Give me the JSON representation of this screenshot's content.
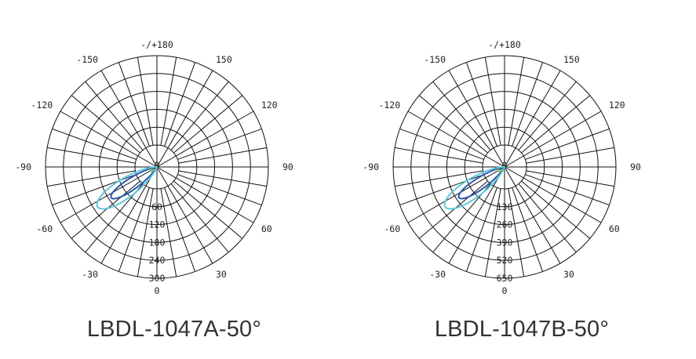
{
  "panels": [
    {
      "title": "LBDL-1047A-50°",
      "angle_labels": [
        {
          "angle": 180,
          "text": "-/+180"
        },
        {
          "angle": -150,
          "text": "-150"
        },
        {
          "angle": 150,
          "text": "150"
        },
        {
          "angle": -120,
          "text": "-120"
        },
        {
          "angle": 120,
          "text": "120"
        },
        {
          "angle": -90,
          "text": "-90"
        },
        {
          "angle": 90,
          "text": "90"
        },
        {
          "angle": -60,
          "text": "-60"
        },
        {
          "angle": 60,
          "text": "60"
        },
        {
          "angle": -30,
          "text": "-30"
        },
        {
          "angle": 30,
          "text": "30"
        },
        {
          "angle": 0,
          "text": "0"
        }
      ],
      "center_label": "0",
      "radial_labels": [
        "60",
        "120",
        "180",
        "240",
        "300"
      ],
      "radial_max": 300,
      "curves": [
        {
          "color": "#5ec8d8",
          "peak_angle": -56,
          "peak_value": 240,
          "half_width_deg": 13
        },
        {
          "color": "#2a58b0",
          "peak_angle": -56,
          "peak_value": 185,
          "half_width_deg": 10
        },
        {
          "color": "#8fd04a",
          "peak_angle": -56,
          "peak_value": 25,
          "half_width_deg": 20
        }
      ]
    },
    {
      "title": "LBDL-1047B-50°",
      "angle_labels": [
        {
          "angle": 180,
          "text": "-/+180"
        },
        {
          "angle": -150,
          "text": "-150"
        },
        {
          "angle": 150,
          "text": "150"
        },
        {
          "angle": -120,
          "text": "-120"
        },
        {
          "angle": 120,
          "text": "120"
        },
        {
          "angle": -90,
          "text": "-90"
        },
        {
          "angle": 90,
          "text": "90"
        },
        {
          "angle": -60,
          "text": "-60"
        },
        {
          "angle": 60,
          "text": "60"
        },
        {
          "angle": -30,
          "text": "-30"
        },
        {
          "angle": 30,
          "text": "30"
        },
        {
          "angle": 0,
          "text": "0"
        }
      ],
      "center_label": "0",
      "radial_labels": [
        "130",
        "260",
        "390",
        "520",
        "650"
      ],
      "radial_max": 650,
      "curves": [
        {
          "color": "#5ec8d8",
          "peak_angle": -56,
          "peak_value": 520,
          "half_width_deg": 13
        },
        {
          "color": "#2a58b0",
          "peak_angle": -56,
          "peak_value": 400,
          "half_width_deg": 10
        },
        {
          "color": "#8fd04a",
          "peak_angle": -56,
          "peak_value": 55,
          "half_width_deg": 20
        }
      ]
    }
  ]
}
